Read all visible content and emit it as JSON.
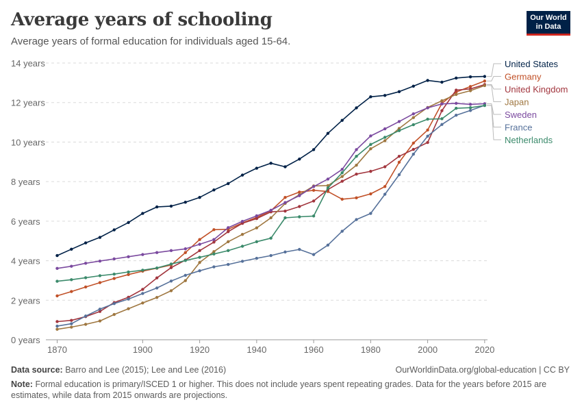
{
  "header": {
    "title": "Average years of schooling",
    "subtitle": "Average years of formal education for individuals aged 15-64."
  },
  "logo": {
    "line1": "Our World",
    "line2": "in Data"
  },
  "footer": {
    "source_label": "Data source:",
    "source_text": "Barro and Lee (2015); Lee and Lee (2016)",
    "credit": "OurWorldinData.org/global-education | CC BY",
    "note_label": "Note:",
    "note_text": "Formal education is primary/ISCED 1 or higher. This does not include years spent repeating grades. Data for the years before 2015 are estimates, while data from 2015 onwards are projections."
  },
  "chart_data": {
    "type": "line",
    "title": "Average years of schooling",
    "subtitle": "Average years of formal education for individuals aged 15-64.",
    "xlim": [
      1867,
      2021
    ],
    "ylim": [
      0,
      14
    ],
    "x_ticks": [
      1870,
      1900,
      1920,
      1940,
      1960,
      1980,
      2000,
      2020
    ],
    "y_ticks": [
      0,
      2,
      4,
      6,
      8,
      10,
      12,
      14
    ],
    "y_tick_labels": [
      "0 years",
      "2 years",
      "4 years",
      "6 years",
      "8 years",
      "10 years",
      "12 years",
      "14 years"
    ],
    "grid": "horizontal dashed",
    "legend": "right, labels at line ends",
    "x": [
      1870,
      1875,
      1880,
      1885,
      1890,
      1895,
      1900,
      1905,
      1910,
      1915,
      1920,
      1925,
      1930,
      1935,
      1940,
      1945,
      1950,
      1955,
      1960,
      1965,
      1970,
      1975,
      1980,
      1985,
      1990,
      1995,
      2000,
      2005,
      2010,
      2015,
      2020
    ],
    "series": [
      {
        "name": "United States",
        "color": "#002147",
        "values": [
          4.26,
          4.58,
          4.9,
          5.18,
          5.56,
          5.93,
          6.39,
          6.72,
          6.76,
          6.96,
          7.2,
          7.58,
          7.9,
          8.33,
          8.68,
          8.93,
          8.75,
          9.14,
          9.62,
          10.44,
          11.1,
          11.73,
          12.29,
          12.36,
          12.55,
          12.83,
          13.12,
          13.03,
          13.24,
          13.3,
          13.32
        ]
      },
      {
        "name": "Germany",
        "color": "#c15128",
        "values": [
          2.22,
          2.44,
          2.67,
          2.89,
          3.1,
          3.3,
          3.47,
          3.62,
          3.78,
          4.41,
          5.07,
          5.57,
          5.59,
          5.91,
          6.19,
          6.53,
          7.2,
          7.47,
          7.56,
          7.5,
          7.11,
          7.18,
          7.38,
          7.75,
          8.98,
          9.95,
          10.61,
          11.96,
          12.53,
          12.81,
          13.09
        ]
      },
      {
        "name": "United Kingdom",
        "color": "#a2363e",
        "values": [
          0.92,
          0.98,
          1.17,
          1.43,
          1.88,
          2.15,
          2.55,
          3.13,
          3.65,
          4.03,
          4.51,
          4.94,
          5.47,
          5.89,
          6.13,
          6.47,
          6.51,
          6.74,
          7.02,
          7.6,
          8.02,
          8.38,
          8.52,
          8.75,
          9.28,
          9.63,
          9.98,
          11.59,
          12.63,
          12.69,
          12.91
        ]
      },
      {
        "name": "Japan",
        "color": "#9f7740",
        "values": [
          0.53,
          0.64,
          0.78,
          0.95,
          1.28,
          1.57,
          1.86,
          2.14,
          2.48,
          2.99,
          3.91,
          4.46,
          4.96,
          5.33,
          5.66,
          6.17,
          6.9,
          7.34,
          7.78,
          7.8,
          8.26,
          8.83,
          9.66,
          10.07,
          10.69,
          11.24,
          11.75,
          12.09,
          12.41,
          12.6,
          12.86
        ]
      },
      {
        "name": "Sweden",
        "color": "#7b4a9f",
        "values": [
          3.61,
          3.72,
          3.87,
          3.98,
          4.09,
          4.2,
          4.31,
          4.41,
          4.51,
          4.6,
          4.83,
          5.07,
          5.67,
          5.99,
          6.27,
          6.55,
          6.94,
          7.29,
          7.75,
          8.13,
          8.62,
          9.62,
          10.31,
          10.67,
          11.04,
          11.43,
          11.73,
          11.93,
          11.96,
          11.91,
          11.94
        ]
      },
      {
        "name": "France",
        "color": "#56719a",
        "values": [
          0.69,
          0.81,
          1.2,
          1.55,
          1.83,
          2.06,
          2.34,
          2.62,
          2.97,
          3.26,
          3.49,
          3.69,
          3.81,
          3.97,
          4.12,
          4.26,
          4.44,
          4.57,
          4.31,
          4.79,
          5.49,
          6.08,
          6.39,
          7.36,
          8.35,
          9.39,
          10.3,
          10.89,
          11.36,
          11.6,
          11.86
        ]
      },
      {
        "name": "Netherlands",
        "color": "#3b8a6b",
        "values": [
          2.96,
          3.04,
          3.14,
          3.24,
          3.32,
          3.43,
          3.52,
          3.63,
          3.83,
          4.01,
          4.17,
          4.34,
          4.51,
          4.73,
          4.96,
          5.14,
          6.17,
          6.22,
          6.26,
          7.68,
          8.45,
          9.28,
          9.88,
          10.24,
          10.58,
          10.88,
          11.16,
          11.18,
          11.71,
          11.74,
          11.85
        ]
      }
    ]
  }
}
